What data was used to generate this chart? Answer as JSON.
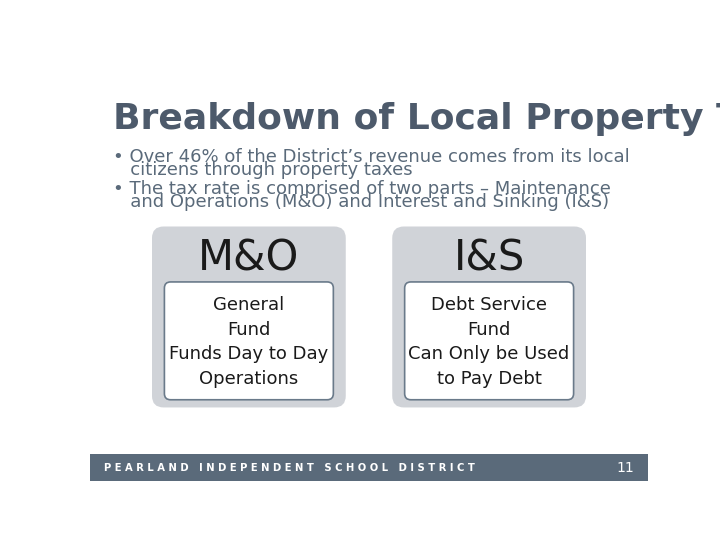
{
  "title": "Breakdown of Local Property Taxes",
  "title_color": "#4d5a6b",
  "title_fontsize": 26,
  "bullet1_line1": "• Over 46% of the District’s revenue comes from its local",
  "bullet1_line2": "   citizens through property taxes",
  "bullet2_line1": "• The tax rate is comprised of two parts – Maintenance",
  "bullet2_line2": "   and Operations (M&O) and Interest and Sinking (I&S)",
  "bullet_color": "#5a6a7a",
  "bullet_fontsize": 13,
  "box_bg_color": "#d0d3d8",
  "inner_box_bg": "#ffffff",
  "inner_box_border": "#6a7a8a",
  "left_label": "M&O",
  "right_label": "I&S",
  "label_fontsize": 30,
  "left_inner_line1": "General",
  "left_inner_line2": "Fund",
  "left_inner_line3": "Funds Day to Day",
  "left_inner_line4": "Operations",
  "right_inner_line1": "Debt Service",
  "right_inner_line2": "Fund",
  "right_inner_line3": "Can Only be Used",
  "right_inner_line4": "to Pay Debt",
  "inner_fontsize": 13,
  "footer_text": "P E A R L A N D   I N D E P E N D E N T   S C H O O L   D I S T R I C T",
  "footer_number": "11",
  "footer_bg": "#5a6a7a",
  "footer_text_color": "#ffffff",
  "bg_color": "#ffffff"
}
